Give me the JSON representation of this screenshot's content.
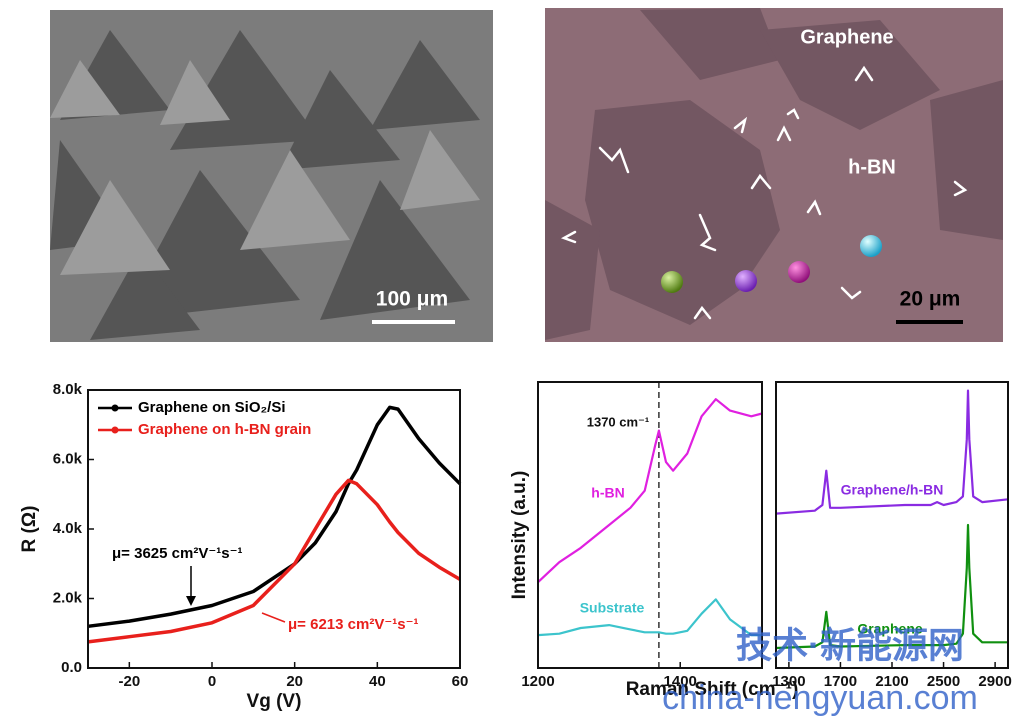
{
  "images": [
    {
      "scale_bar": "100 μm"
    },
    {
      "labels": [
        "Graphene",
        "h-BN"
      ],
      "scale_bar": "20 μm"
    }
  ],
  "chart_data": [
    {
      "type": "line",
      "xlabel": "Vg (V)",
      "ylabel": "R (Ω)",
      "x": [
        -30,
        -20,
        -10,
        0,
        10,
        20,
        25,
        30,
        33,
        35,
        40,
        43,
        45,
        50,
        55,
        60
      ],
      "series": [
        {
          "name": "Graphene on SiO₂/Si",
          "color": "#000000",
          "values": [
            1200,
            1350,
            1550,
            1800,
            2200,
            3000,
            3600,
            4500,
            5300,
            5700,
            7000,
            7500,
            7450,
            6600,
            5900,
            5300
          ]
        },
        {
          "name": "Graphene on h-BN grain",
          "color": "#e8201c",
          "values": [
            750,
            900,
            1050,
            1300,
            1800,
            3000,
            4000,
            5000,
            5400,
            5300,
            4700,
            4200,
            3900,
            3300,
            2900,
            2550
          ]
        }
      ],
      "annotations": [
        "μ= 3625 cm²V⁻¹s⁻¹",
        "μ= 6213 cm²V⁻¹s⁻¹"
      ],
      "xlim": [
        -30,
        60
      ],
      "xticks": [
        -20,
        0,
        20,
        40,
        60
      ],
      "ylim": [
        0,
        8000
      ],
      "yticks": [
        {
          "value": 0,
          "label": "0.0"
        },
        {
          "value": 2000,
          "label": "2.0k"
        },
        {
          "value": 4000,
          "label": "4.0k"
        },
        {
          "value": 6000,
          "label": "6.0k"
        },
        {
          "value": 8000,
          "label": "8.0k"
        }
      ],
      "legend": "upper left"
    },
    {
      "type": "line",
      "xlabel": "Raman Shift (cm⁻¹)",
      "ylabel": "Intensity (a.u.)",
      "x": [
        1200,
        1230,
        1260,
        1300,
        1330,
        1350,
        1365,
        1370,
        1380,
        1390,
        1410,
        1430,
        1450,
        1470,
        1500,
        1515
      ],
      "series": [
        {
          "name": "h-BN",
          "color": "#e020e0",
          "values": [
            30,
            37,
            42,
            50,
            56,
            62,
            78,
            83,
            72,
            69,
            75,
            88,
            94,
            90,
            88,
            89
          ]
        },
        {
          "name": "Substrate",
          "color": "#3cc4cc",
          "values": [
            11.5,
            12,
            14,
            15,
            13.5,
            12.5,
            12.5,
            12.5,
            12,
            12,
            13,
            19,
            24,
            17,
            11.5,
            11.5
          ]
        }
      ],
      "marker_x": 1370,
      "marker_label": "1370 cm⁻¹",
      "xlim": [
        1200,
        1515
      ],
      "xticks": [
        1200,
        1400
      ],
      "ylim": [
        0,
        100
      ]
    },
    {
      "type": "line",
      "x": [
        1200,
        1500,
        1560,
        1590,
        1620,
        1700,
        2200,
        2400,
        2450,
        2500,
        2600,
        2650,
        2680,
        2690,
        2700,
        2730,
        2800,
        3000
      ],
      "series": [
        {
          "name": "Graphene/h-BN",
          "color": "#8a2be2",
          "values": [
            54,
            55,
            57,
            69,
            56,
            56,
            57,
            57,
            58,
            57,
            58,
            60,
            80,
            97,
            80,
            60,
            58,
            59
          ]
        },
        {
          "name": "Graphene",
          "color": "#109010",
          "values": [
            7,
            7.5,
            9,
            19.6,
            8,
            7.5,
            8,
            8,
            8,
            8,
            8.5,
            12,
            35,
            50,
            35,
            12,
            9,
            9
          ]
        }
      ],
      "xlim": [
        1200,
        3000
      ],
      "xticks": [
        1300,
        1700,
        2100,
        2500,
        2900
      ],
      "ylim": [
        0,
        100
      ]
    }
  ],
  "watermark": [
    "技术·新能源网",
    "china-nengyuan.com"
  ]
}
